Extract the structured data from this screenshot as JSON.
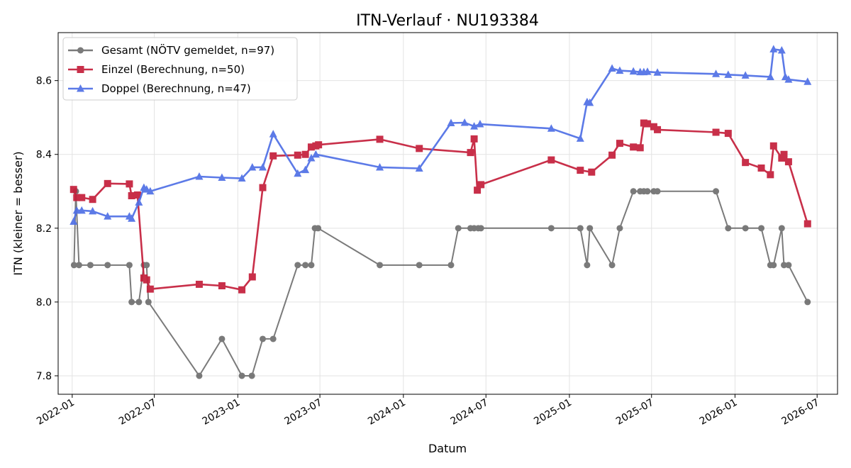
{
  "chart_data": {
    "type": "line",
    "title": "ITN-Verlauf · NU193384",
    "xlabel": "Datum",
    "ylabel": "ITN  (kleiner = besser)",
    "xlim": [
      "2021-12-01",
      "2026-08-15"
    ],
    "ylim": [
      7.75,
      8.73
    ],
    "x_ticks": [
      "2022-01",
      "2022-07",
      "2023-01",
      "2023-07",
      "2024-01",
      "2024-07",
      "2025-01",
      "2025-07",
      "2026-01",
      "2026-07"
    ],
    "y_ticks": [
      7.8,
      8.0,
      8.2,
      8.4,
      8.6
    ],
    "grid": true,
    "legend_position": "top-left",
    "series": [
      {
        "name": "Gesamt (NÖTV gemeldet, n=97)",
        "color": "#555555",
        "marker": "circle",
        "points": [
          [
            "2022-01-05",
            8.1
          ],
          [
            "2022-01-09",
            8.3
          ],
          [
            "2022-01-16",
            8.1
          ],
          [
            "2022-02-10",
            8.1
          ],
          [
            "2022-03-20",
            8.1
          ],
          [
            "2022-05-07",
            8.1
          ],
          [
            "2022-05-12",
            8.0
          ],
          [
            "2022-05-28",
            8.0
          ],
          [
            "2022-06-08",
            8.1
          ],
          [
            "2022-06-14",
            8.1
          ],
          [
            "2022-06-18",
            8.0
          ],
          [
            "2022-10-08",
            7.8
          ],
          [
            "2022-11-27",
            7.9
          ],
          [
            "2023-01-10",
            7.8
          ],
          [
            "2023-02-01",
            7.8
          ],
          [
            "2023-02-25",
            7.9
          ],
          [
            "2023-03-20",
            7.9
          ],
          [
            "2023-05-13",
            8.1
          ],
          [
            "2023-05-30",
            8.1
          ],
          [
            "2023-06-12",
            8.1
          ],
          [
            "2023-06-20",
            8.2
          ],
          [
            "2023-06-27",
            8.2
          ],
          [
            "2023-11-10",
            8.1
          ],
          [
            "2024-02-05",
            8.1
          ],
          [
            "2024-04-15",
            8.1
          ],
          [
            "2024-05-01",
            8.2
          ],
          [
            "2024-05-28",
            8.2
          ],
          [
            "2024-06-05",
            8.2
          ],
          [
            "2024-06-14",
            8.2
          ],
          [
            "2024-06-20",
            8.2
          ],
          [
            "2024-11-22",
            8.2
          ],
          [
            "2025-01-25",
            8.2
          ],
          [
            "2025-02-09",
            8.1
          ],
          [
            "2025-02-15",
            8.2
          ],
          [
            "2025-04-05",
            8.1
          ],
          [
            "2025-04-22",
            8.2
          ],
          [
            "2025-05-22",
            8.3
          ],
          [
            "2025-06-06",
            8.3
          ],
          [
            "2025-06-14",
            8.3
          ],
          [
            "2025-06-22",
            8.3
          ],
          [
            "2025-07-06",
            8.3
          ],
          [
            "2025-07-14",
            8.3
          ],
          [
            "2025-11-20",
            8.3
          ],
          [
            "2025-12-17",
            8.2
          ],
          [
            "2026-01-24",
            8.2
          ],
          [
            "2026-02-28",
            8.2
          ],
          [
            "2026-03-20",
            8.1
          ],
          [
            "2026-03-27",
            8.1
          ],
          [
            "2026-04-14",
            8.2
          ],
          [
            "2026-04-19",
            8.1
          ],
          [
            "2026-04-29",
            8.1
          ],
          [
            "2026-06-10",
            8.0
          ]
        ]
      },
      {
        "name": "Einzel (Berechnung, n=50)",
        "color": "#c41e3a",
        "marker": "square",
        "points": [
          [
            "2022-01-04",
            8.305
          ],
          [
            "2022-01-11",
            8.283
          ],
          [
            "2022-01-22",
            8.283
          ],
          [
            "2022-02-15",
            8.278
          ],
          [
            "2022-03-20",
            8.321
          ],
          [
            "2022-05-07",
            8.32
          ],
          [
            "2022-05-12",
            8.288
          ],
          [
            "2022-05-25",
            8.29
          ],
          [
            "2022-06-08",
            8.065
          ],
          [
            "2022-06-14",
            8.06
          ],
          [
            "2022-06-22",
            8.035
          ],
          [
            "2022-10-08",
            8.048
          ],
          [
            "2022-11-27",
            8.044
          ],
          [
            "2023-01-10",
            8.033
          ],
          [
            "2023-02-02",
            8.068
          ],
          [
            "2023-02-25",
            8.31
          ],
          [
            "2023-03-20",
            8.396
          ],
          [
            "2023-05-13",
            8.398
          ],
          [
            "2023-05-30",
            8.4
          ],
          [
            "2023-06-12",
            8.42
          ],
          [
            "2023-06-22",
            8.423
          ],
          [
            "2023-06-28",
            8.426
          ],
          [
            "2023-11-10",
            8.441
          ],
          [
            "2024-02-05",
            8.416
          ],
          [
            "2024-05-28",
            8.405
          ],
          [
            "2024-06-05",
            8.442
          ],
          [
            "2024-06-12",
            8.303
          ],
          [
            "2024-06-20",
            8.318
          ],
          [
            "2024-11-22",
            8.385
          ],
          [
            "2025-01-25",
            8.357
          ],
          [
            "2025-02-19",
            8.352
          ],
          [
            "2025-04-05",
            8.398
          ],
          [
            "2025-04-22",
            8.43
          ],
          [
            "2025-05-22",
            8.42
          ],
          [
            "2025-06-06",
            8.418
          ],
          [
            "2025-06-14",
            8.485
          ],
          [
            "2025-06-22",
            8.483
          ],
          [
            "2025-07-06",
            8.475
          ],
          [
            "2025-07-14",
            8.467
          ],
          [
            "2025-11-20",
            8.46
          ],
          [
            "2025-12-17",
            8.457
          ],
          [
            "2026-01-24",
            8.378
          ],
          [
            "2026-02-28",
            8.363
          ],
          [
            "2026-03-20",
            8.345
          ],
          [
            "2026-03-27",
            8.423
          ],
          [
            "2026-04-14",
            8.39
          ],
          [
            "2026-04-19",
            8.4
          ],
          [
            "2026-04-29",
            8.38
          ],
          [
            "2026-06-10",
            8.212
          ]
        ]
      },
      {
        "name": "Doppel (Berechnung, n=47)",
        "color": "#4f6fe6",
        "marker": "triangle",
        "points": [
          [
            "2022-01-04",
            8.218
          ],
          [
            "2022-01-11",
            8.248
          ],
          [
            "2022-01-22",
            8.248
          ],
          [
            "2022-02-15",
            8.246
          ],
          [
            "2022-03-20",
            8.232
          ],
          [
            "2022-05-07",
            8.232
          ],
          [
            "2022-05-12",
            8.226
          ],
          [
            "2022-05-28",
            8.27
          ],
          [
            "2022-06-08",
            8.31
          ],
          [
            "2022-06-14",
            8.305
          ],
          [
            "2022-06-22",
            8.3
          ],
          [
            "2022-10-08",
            8.34
          ],
          [
            "2022-11-27",
            8.337
          ],
          [
            "2023-01-10",
            8.335
          ],
          [
            "2023-02-02",
            8.365
          ],
          [
            "2023-02-25",
            8.365
          ],
          [
            "2023-03-20",
            8.455
          ],
          [
            "2023-05-13",
            8.348
          ],
          [
            "2023-05-30",
            8.358
          ],
          [
            "2023-06-12",
            8.39
          ],
          [
            "2023-06-22",
            8.4
          ],
          [
            "2023-11-10",
            8.365
          ],
          [
            "2024-02-05",
            8.362
          ],
          [
            "2024-04-15",
            8.485
          ],
          [
            "2024-05-15",
            8.486
          ],
          [
            "2024-06-05",
            8.476
          ],
          [
            "2024-06-18",
            8.482
          ],
          [
            "2024-11-22",
            8.47
          ],
          [
            "2025-01-25",
            8.443
          ],
          [
            "2025-02-09",
            8.542
          ],
          [
            "2025-02-15",
            8.54
          ],
          [
            "2025-04-05",
            8.633
          ],
          [
            "2025-04-22",
            8.627
          ],
          [
            "2025-05-22",
            8.625
          ],
          [
            "2025-06-06",
            8.623
          ],
          [
            "2025-06-14",
            8.623
          ],
          [
            "2025-06-22",
            8.624
          ],
          [
            "2025-07-14",
            8.622
          ],
          [
            "2025-11-20",
            8.618
          ],
          [
            "2025-12-17",
            8.616
          ],
          [
            "2026-01-24",
            8.614
          ],
          [
            "2026-03-20",
            8.61
          ],
          [
            "2026-03-27",
            8.685
          ],
          [
            "2026-04-14",
            8.682
          ],
          [
            "2026-04-22",
            8.61
          ],
          [
            "2026-04-29",
            8.603
          ],
          [
            "2026-06-10",
            8.597
          ]
        ]
      }
    ]
  }
}
